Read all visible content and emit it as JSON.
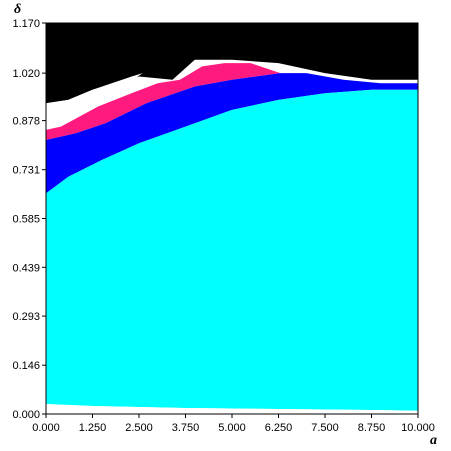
{
  "chart_data": {
    "type": "heatmap",
    "title": "",
    "xlabel": "a",
    "ylabel": "δ",
    "xlim": [
      0,
      10
    ],
    "ylim": [
      0,
      1.17
    ],
    "x_ticks": [
      {
        "value": 0,
        "label": "0.000"
      },
      {
        "value": 1.25,
        "label": "1.250"
      },
      {
        "value": 2.5,
        "label": "2.500"
      },
      {
        "value": 3.75,
        "label": "3.750"
      },
      {
        "value": 5,
        "label": "5.000"
      },
      {
        "value": 6.25,
        "label": "6.250"
      },
      {
        "value": 7.5,
        "label": "7.500"
      },
      {
        "value": 8.75,
        "label": "8.750"
      },
      {
        "value": 10,
        "label": "10.000"
      }
    ],
    "y_ticks": [
      {
        "value": 0,
        "label": "0.000"
      },
      {
        "value": 0.146,
        "label": "0.146"
      },
      {
        "value": 0.293,
        "label": "0.293"
      },
      {
        "value": 0.439,
        "label": "0.439"
      },
      {
        "value": 0.585,
        "label": "0.585"
      },
      {
        "value": 0.731,
        "label": "0.731"
      },
      {
        "value": 0.878,
        "label": "0.878"
      },
      {
        "value": 1.02,
        "label": "1.020"
      },
      {
        "value": 1.17,
        "label": "1.170"
      }
    ],
    "regions": [
      {
        "color": "#000000",
        "polygon": [
          [
            0,
            1.17
          ],
          [
            10,
            1.17
          ],
          [
            10,
            1.0
          ],
          [
            8.75,
            1.0
          ],
          [
            7.5,
            1.02
          ],
          [
            6.25,
            1.05
          ],
          [
            5.0,
            1.06
          ],
          [
            4.0,
            1.06
          ],
          [
            3.8,
            1.04
          ],
          [
            3.4,
            1.0
          ],
          [
            2.5,
            1.01
          ],
          [
            1.25,
            0.97
          ],
          [
            0.6,
            0.94
          ],
          [
            0,
            0.93
          ]
        ]
      },
      {
        "color": "#ffffff",
        "polygon": [
          [
            0,
            0.93
          ],
          [
            0.6,
            0.94
          ],
          [
            1.25,
            0.97
          ],
          [
            2.3,
            1.01
          ],
          [
            2.6,
            1.02
          ],
          [
            2.2,
            0.99
          ],
          [
            1.4,
            0.93
          ],
          [
            0.8,
            0.89
          ],
          [
            0.4,
            0.86
          ],
          [
            0,
            0.85
          ]
        ]
      },
      {
        "color": "#ff1a80",
        "polygon": [
          [
            0,
            0.85
          ],
          [
            0.4,
            0.86
          ],
          [
            1.4,
            0.92
          ],
          [
            2.3,
            0.96
          ],
          [
            3.0,
            0.99
          ],
          [
            3.6,
            1.0
          ],
          [
            4.2,
            1.04
          ],
          [
            4.8,
            1.05
          ],
          [
            5.5,
            1.05
          ],
          [
            6.3,
            1.02
          ],
          [
            5.0,
            1.0
          ],
          [
            4.0,
            0.98
          ],
          [
            2.7,
            0.93
          ],
          [
            1.6,
            0.87
          ],
          [
            0.8,
            0.84
          ],
          [
            0,
            0.82
          ]
        ]
      },
      {
        "color": "#0000ff",
        "polygon": [
          [
            0,
            0.82
          ],
          [
            0.8,
            0.84
          ],
          [
            1.6,
            0.87
          ],
          [
            2.7,
            0.93
          ],
          [
            4.0,
            0.98
          ],
          [
            5.0,
            1.0
          ],
          [
            6.3,
            1.02
          ],
          [
            7.0,
            1.02
          ],
          [
            8.0,
            1.0
          ],
          [
            9.0,
            0.99
          ],
          [
            10,
            0.99
          ],
          [
            10,
            0.97
          ],
          [
            8.75,
            0.97
          ],
          [
            7.5,
            0.96
          ],
          [
            6.25,
            0.94
          ],
          [
            5.0,
            0.91
          ],
          [
            3.75,
            0.86
          ],
          [
            2.5,
            0.81
          ],
          [
            1.5,
            0.76
          ],
          [
            0.6,
            0.71
          ],
          [
            0,
            0.66
          ]
        ]
      },
      {
        "color": "#00ffff",
        "polygon": [
          [
            0,
            0.66
          ],
          [
            0.6,
            0.71
          ],
          [
            1.5,
            0.76
          ],
          [
            2.5,
            0.81
          ],
          [
            3.75,
            0.86
          ],
          [
            5.0,
            0.91
          ],
          [
            6.25,
            0.94
          ],
          [
            7.5,
            0.96
          ],
          [
            8.75,
            0.97
          ],
          [
            10,
            0.97
          ],
          [
            10,
            0.01
          ],
          [
            8.75,
            0.012
          ],
          [
            6.25,
            0.015
          ],
          [
            3.75,
            0.018
          ],
          [
            1.25,
            0.024
          ],
          [
            0,
            0.03
          ]
        ]
      },
      {
        "color": "#ffffff",
        "polygon": [
          [
            0,
            0.03
          ],
          [
            1.25,
            0.024
          ],
          [
            3.75,
            0.018
          ],
          [
            6.25,
            0.015
          ],
          [
            8.75,
            0.012
          ],
          [
            10,
            0.01
          ],
          [
            10,
            0
          ],
          [
            0,
            0
          ]
        ]
      }
    ]
  }
}
